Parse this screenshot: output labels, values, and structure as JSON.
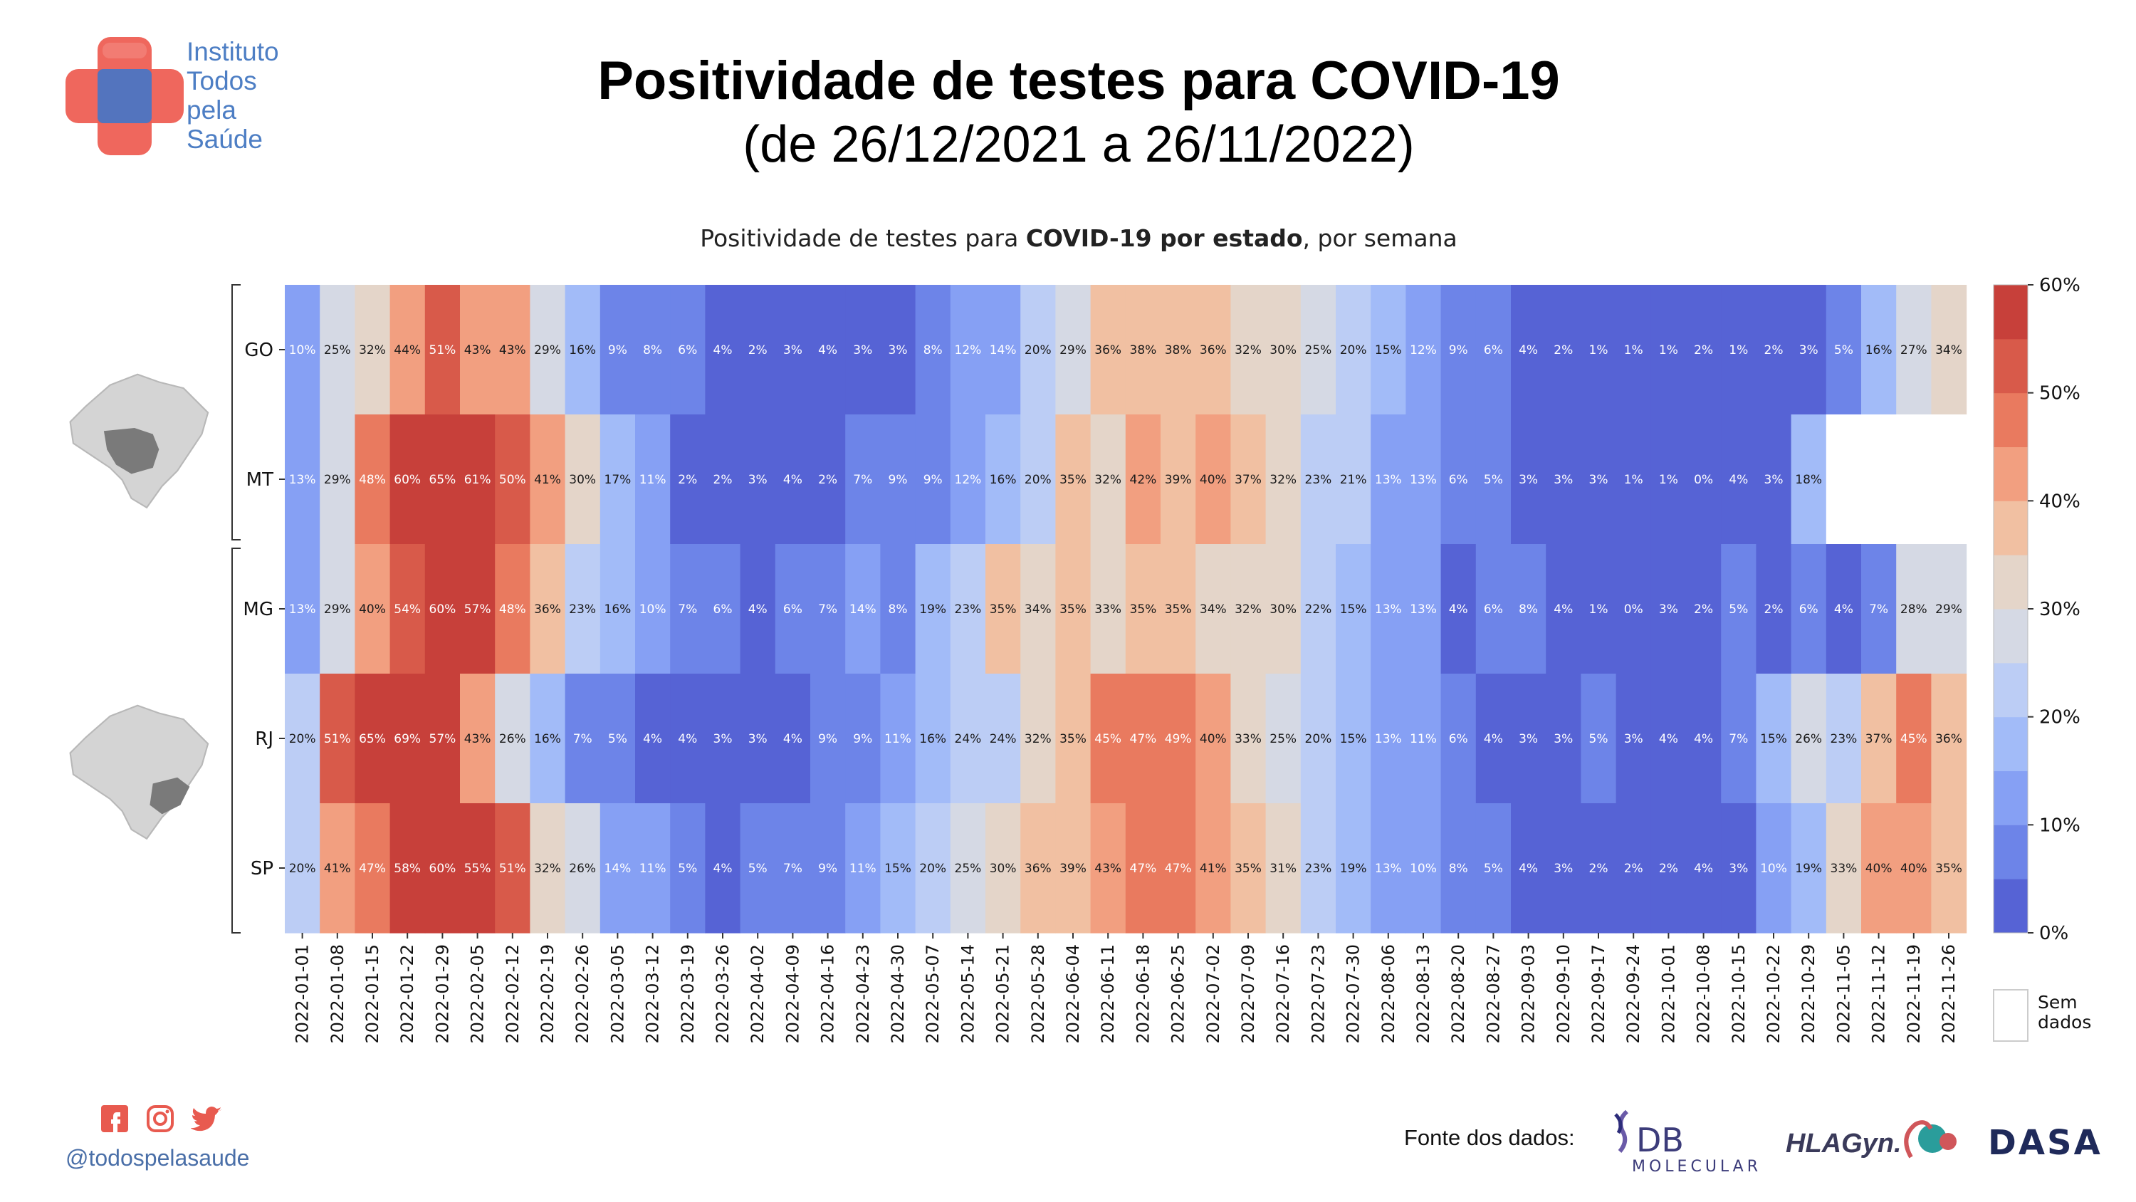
{
  "header": {
    "logo_lines": [
      "Instituto",
      "Todos",
      "pela",
      "Saúde"
    ],
    "title": "Positividade de testes para COVID-19",
    "subtitle": "(de 26/12/2021 a 26/11/2022)"
  },
  "chart_title": {
    "prefix": "Positividade de testes para ",
    "bold": "COVID-19 por estado",
    "suffix": ", por semana"
  },
  "colors": {
    "scale": [
      "#5663d5",
      "#6d84e8",
      "#86a0f4",
      "#a2bbf8",
      "#bccdf5",
      "#d5d9e4",
      "#e4d5c9",
      "#f1c0a2",
      "#f29f80",
      "#e97a5f",
      "#d85a4a",
      "#c7403a"
    ],
    "missing": "#ffffff",
    "logo_red": "#ee5a4f",
    "logo_blue": "#4a76c4",
    "map_gray": "#d4d4d4",
    "map_highlight": "#7a7a7a"
  },
  "chart_data": {
    "type": "heatmap",
    "x": [
      "2022-01-01",
      "2022-01-08",
      "2022-01-15",
      "2022-01-22",
      "2022-01-29",
      "2022-02-05",
      "2022-02-12",
      "2022-02-19",
      "2022-02-26",
      "2022-03-05",
      "2022-03-12",
      "2022-03-19",
      "2022-03-26",
      "2022-04-02",
      "2022-04-09",
      "2022-04-16",
      "2022-04-23",
      "2022-04-30",
      "2022-05-07",
      "2022-05-14",
      "2022-05-21",
      "2022-05-28",
      "2022-06-04",
      "2022-06-11",
      "2022-06-18",
      "2022-06-25",
      "2022-07-02",
      "2022-07-09",
      "2022-07-16",
      "2022-07-23",
      "2022-07-30",
      "2022-08-06",
      "2022-08-13",
      "2022-08-20",
      "2022-08-27",
      "2022-09-03",
      "2022-09-10",
      "2022-09-17",
      "2022-09-24",
      "2022-10-01",
      "2022-10-08",
      "2022-10-15",
      "2022-10-22",
      "2022-10-29",
      "2022-11-05",
      "2022-11-12",
      "2022-11-19",
      "2022-11-26"
    ],
    "y": [
      "GO",
      "MT",
      "MG",
      "RJ",
      "SP"
    ],
    "values": [
      [
        10,
        25,
        32,
        44,
        51,
        43,
        43,
        29,
        16,
        9,
        8,
        6,
        4,
        2,
        3,
        4,
        3,
        3,
        8,
        12,
        14,
        20,
        29,
        36,
        38,
        38,
        36,
        32,
        30,
        25,
        20,
        15,
        12,
        9,
        6,
        4,
        2,
        1,
        1,
        1,
        2,
        1,
        2,
        3,
        5,
        16,
        27,
        34
      ],
      [
        13,
        29,
        48,
        60,
        65,
        61,
        50,
        41,
        30,
        17,
        11,
        2,
        2,
        3,
        4,
        2,
        7,
        9,
        9,
        12,
        16,
        20,
        35,
        32,
        42,
        39,
        40,
        37,
        32,
        23,
        21,
        13,
        13,
        6,
        5,
        3,
        3,
        3,
        1,
        1,
        0,
        4,
        3,
        18,
        null,
        null,
        null,
        null
      ],
      [
        13,
        29,
        40,
        54,
        60,
        57,
        48,
        36,
        23,
        16,
        10,
        7,
        6,
        4,
        6,
        7,
        14,
        8,
        19,
        23,
        35,
        34,
        35,
        33,
        35,
        35,
        34,
        32,
        30,
        22,
        15,
        13,
        13,
        4,
        6,
        8,
        4,
        1,
        0,
        3,
        2,
        5,
        2,
        6,
        4,
        7,
        28,
        29
      ],
      [
        20,
        51,
        65,
        69,
        57,
        43,
        26,
        16,
        7,
        5,
        4,
        4,
        3,
        3,
        4,
        9,
        9,
        11,
        16,
        24,
        24,
        32,
        35,
        45,
        47,
        49,
        40,
        33,
        25,
        20,
        15,
        13,
        11,
        6,
        4,
        3,
        3,
        5,
        3,
        4,
        4,
        7,
        15,
        26,
        23,
        37,
        45,
        36
      ],
      [
        20,
        41,
        47,
        58,
        60,
        55,
        51,
        32,
        26,
        14,
        11,
        5,
        4,
        5,
        7,
        9,
        11,
        15,
        20,
        25,
        30,
        36,
        39,
        43,
        47,
        47,
        41,
        35,
        31,
        23,
        19,
        13,
        10,
        8,
        5,
        4,
        3,
        2,
        2,
        2,
        4,
        3,
        10,
        19,
        33,
        40,
        40,
        35
      ]
    ],
    "value_suffix": "%",
    "colorbar": {
      "min": 0,
      "max": 60,
      "ticks": [
        "0%",
        "10%",
        "20%",
        "30%",
        "40%",
        "50%",
        "60%"
      ]
    },
    "legend_missing": [
      "Sem",
      "dados"
    ]
  },
  "footer": {
    "handle": "@todospelasaude",
    "sources_label": "Fonte dos dados:",
    "sponsors": [
      "DB",
      "MOLECULAR",
      "HLAGyn.",
      "DASA"
    ]
  }
}
